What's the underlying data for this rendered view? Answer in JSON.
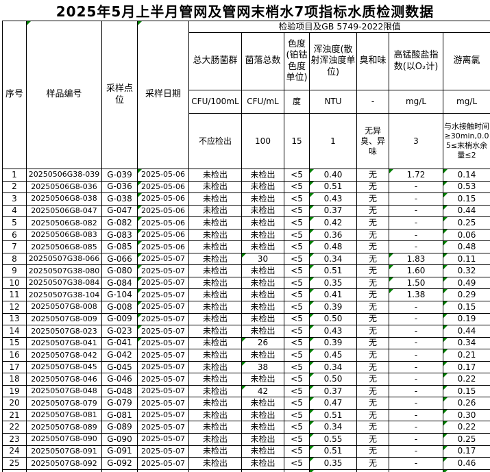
{
  "title": "2025年5月上半月管网及管网末梢水7项指标水质检测数据",
  "colors": {
    "triangle_green": "#008000",
    "border": "#000000",
    "background": "#ffffff"
  },
  "table": {
    "test_header": "检验项目及GB 5749-2022限值",
    "left_headers": [
      {
        "key": "no",
        "label": "序号",
        "mark": false
      },
      {
        "key": "sample",
        "label": "样品编号",
        "mark": true
      },
      {
        "key": "point",
        "label": "采样点位",
        "mark": false
      },
      {
        "key": "date",
        "label": "采样日期",
        "mark": true
      }
    ],
    "indicators": [
      {
        "key": "coliform",
        "name": "总大肠菌群",
        "unit": "CFU/100mL",
        "limit": "不应检出"
      },
      {
        "key": "colony",
        "name": "菌落总数",
        "unit": "CFU/mL",
        "limit": "100"
      },
      {
        "key": "color",
        "name": "色度(铂钴色度单位)",
        "unit": "度",
        "limit": "15"
      },
      {
        "key": "turbidity",
        "name": "浑浊度(散射浑浊度单位)",
        "unit": "NTU",
        "limit": "1"
      },
      {
        "key": "odor",
        "name": "臭和味",
        "unit": "-",
        "limit": "无异臭、异味"
      },
      {
        "key": "cod",
        "name": "高锰酸盐指数(以O₂计)",
        "unit": "mg/L",
        "limit": "3"
      },
      {
        "key": "chlorine",
        "name": "游离氯",
        "unit": "mg/L",
        "limit": "与水接触时间≥30min,0.05≤末梢水余量≤2"
      }
    ],
    "columns_order": [
      "no",
      "sample",
      "point",
      "date",
      "coliform",
      "colony",
      "color",
      "turbidity",
      "odor",
      "cod",
      "chlorine"
    ],
    "rows": [
      {
        "no": "1",
        "sample": "20250506G38-039",
        "point": "G-039",
        "date": "2025-05-06",
        "coliform": "未检出",
        "colony": "未检出",
        "color": "<5",
        "turbidity": "0.40",
        "odor": "无",
        "cod": "1.72",
        "chlorine": "0.14",
        "marks": [
          "date",
          "turbidity",
          "cod",
          "chlorine"
        ]
      },
      {
        "no": "2",
        "sample": "20250506G8-036",
        "point": "G-036",
        "date": "2025-05-06",
        "coliform": "未检出",
        "colony": "未检出",
        "color": "<5",
        "turbidity": "0.51",
        "odor": "无",
        "cod": "-",
        "chlorine": "0.53",
        "marks": [
          "date",
          "turbidity",
          "chlorine"
        ]
      },
      {
        "no": "3",
        "sample": "20250506G8-038",
        "point": "G-038",
        "date": "2025-05-06",
        "coliform": "未检出",
        "colony": "未检出",
        "color": "<5",
        "turbidity": "0.43",
        "odor": "无",
        "cod": "-",
        "chlorine": "0.15",
        "marks": [
          "date",
          "turbidity",
          "chlorine"
        ]
      },
      {
        "no": "4",
        "sample": "20250506G8-047",
        "point": "G-047",
        "date": "2025-05-06",
        "coliform": "未检出",
        "colony": "未检出",
        "color": "<5",
        "turbidity": "0.37",
        "odor": "无",
        "cod": "-",
        "chlorine": "0.44",
        "marks": [
          "date",
          "turbidity",
          "chlorine"
        ]
      },
      {
        "no": "5",
        "sample": "20250506G8-082",
        "point": "G-082",
        "date": "2025-05-06",
        "coliform": "未检出",
        "colony": "未检出",
        "color": "<5",
        "turbidity": "0.42",
        "odor": "无",
        "cod": "-",
        "chlorine": "0.25",
        "marks": [
          "date",
          "turbidity",
          "chlorine"
        ]
      },
      {
        "no": "6",
        "sample": "20250506G8-083",
        "point": "G-083",
        "date": "2025-05-06",
        "coliform": "未检出",
        "colony": "未检出",
        "color": "<5",
        "turbidity": "0.36",
        "odor": "无",
        "cod": "-",
        "chlorine": "0.06",
        "marks": [
          "date",
          "turbidity",
          "chlorine"
        ]
      },
      {
        "no": "7",
        "sample": "20250506G8-085",
        "point": "G-085",
        "date": "2025-05-06",
        "coliform": "未检出",
        "colony": "未检出",
        "color": "<5",
        "turbidity": "0.48",
        "odor": "无",
        "cod": "-",
        "chlorine": "0.48",
        "marks": [
          "date",
          "turbidity",
          "chlorine"
        ]
      },
      {
        "no": "8",
        "sample": "20250507G38-066",
        "point": "G-066",
        "date": "2025-05-07",
        "coliform": "未检出",
        "colony": "30",
        "color": "<5",
        "turbidity": "0.34",
        "odor": "无",
        "cod": "1.83",
        "chlorine": "0.11",
        "marks": [
          "date",
          "colony",
          "turbidity",
          "cod",
          "chlorine"
        ]
      },
      {
        "no": "9",
        "sample": "20250507G38-080",
        "point": "G-080",
        "date": "2025-05-07",
        "coliform": "未检出",
        "colony": "未检出",
        "color": "<5",
        "turbidity": "0.51",
        "odor": "无",
        "cod": "1.60",
        "chlorine": "0.32",
        "marks": [
          "date",
          "turbidity",
          "cod",
          "chlorine"
        ]
      },
      {
        "no": "10",
        "sample": "20250507G38-084",
        "point": "G-084",
        "date": "2025-05-07",
        "coliform": "未检出",
        "colony": "未检出",
        "color": "<5",
        "turbidity": "0.35",
        "odor": "无",
        "cod": "1.50",
        "chlorine": "0.49",
        "marks": [
          "date",
          "turbidity",
          "cod",
          "chlorine"
        ]
      },
      {
        "no": "11",
        "sample": "20250507G38-104",
        "point": "G-104",
        "date": "2025-05-07",
        "coliform": "未检出",
        "colony": "未检出",
        "color": "<5",
        "turbidity": "0.41",
        "odor": "无",
        "cod": "1.38",
        "chlorine": "0.29",
        "marks": [
          "date",
          "turbidity",
          "cod",
          "chlorine"
        ]
      },
      {
        "no": "12",
        "sample": "20250507G8-008",
        "point": "G-008",
        "date": "2025-05-07",
        "coliform": "未检出",
        "colony": "未检出",
        "color": "<5",
        "turbidity": "0.39",
        "odor": "无",
        "cod": "-",
        "chlorine": "0.15",
        "marks": [
          "date",
          "turbidity",
          "chlorine"
        ]
      },
      {
        "no": "13",
        "sample": "20250507G8-009",
        "point": "G-009",
        "date": "2025-05-07",
        "coliform": "未检出",
        "colony": "未检出",
        "color": "<5",
        "turbidity": "0.50",
        "odor": "无",
        "cod": "-",
        "chlorine": "0.19",
        "marks": [
          "date",
          "turbidity",
          "chlorine"
        ]
      },
      {
        "no": "14",
        "sample": "20250507G8-023",
        "point": "G-023",
        "date": "2025-05-07",
        "coliform": "未检出",
        "colony": "未检出",
        "color": "<5",
        "turbidity": "0.43",
        "odor": "无",
        "cod": "-",
        "chlorine": "0.44",
        "marks": [
          "date",
          "turbidity",
          "chlorine"
        ]
      },
      {
        "no": "15",
        "sample": "20250507G8-041",
        "point": "G-041",
        "date": "2025-05-07",
        "coliform": "未检出",
        "colony": "26",
        "color": "<5",
        "turbidity": "0.39",
        "odor": "无",
        "cod": "-",
        "chlorine": "0.34",
        "marks": [
          "date",
          "colony",
          "turbidity",
          "chlorine"
        ]
      },
      {
        "no": "16",
        "sample": "20250507G8-042",
        "point": "G-042",
        "date": "2025-05-07",
        "coliform": "未检出",
        "colony": "未检出",
        "color": "<5",
        "turbidity": "0.45",
        "odor": "无",
        "cod": "-",
        "chlorine": "0.21",
        "marks": [
          "turbidity",
          "chlorine"
        ]
      },
      {
        "no": "17",
        "sample": "20250507G8-045",
        "point": "G-045",
        "date": "2025-05-07",
        "coliform": "未检出",
        "colony": "38",
        "color": "<5",
        "turbidity": "0.34",
        "odor": "无",
        "cod": "-",
        "chlorine": "0.17",
        "marks": [
          "colony",
          "turbidity",
          "chlorine"
        ]
      },
      {
        "no": "18",
        "sample": "20250507G8-046",
        "point": "G-046",
        "date": "2025-05-07",
        "coliform": "未检出",
        "colony": "未检出",
        "color": "<5",
        "turbidity": "0.50",
        "odor": "无",
        "cod": "-",
        "chlorine": "0.22",
        "marks": [
          "turbidity",
          "chlorine"
        ]
      },
      {
        "no": "19",
        "sample": "20250507G8-048",
        "point": "G-048",
        "date": "2025-05-07",
        "coliform": "未检出",
        "colony": "42",
        "color": "<5",
        "turbidity": "0.37",
        "odor": "无",
        "cod": "-",
        "chlorine": "0.15",
        "marks": [
          "colony",
          "turbidity",
          "chlorine"
        ]
      },
      {
        "no": "20",
        "sample": "20250507G8-079",
        "point": "G-079",
        "date": "2025-05-07",
        "coliform": "未检出",
        "colony": "未检出",
        "color": "<5",
        "turbidity": "0.47",
        "odor": "无",
        "cod": "-",
        "chlorine": "0.26",
        "marks": [
          "turbidity",
          "chlorine"
        ]
      },
      {
        "no": "21",
        "sample": "20250507G8-081",
        "point": "G-081",
        "date": "2025-05-07",
        "coliform": "未检出",
        "colony": "未检出",
        "color": "<5",
        "turbidity": "0.51",
        "odor": "无",
        "cod": "-",
        "chlorine": "0.30",
        "marks": [
          "turbidity",
          "chlorine"
        ]
      },
      {
        "no": "22",
        "sample": "20250507G8-089",
        "point": "G-089",
        "date": "2025-05-07",
        "coliform": "未检出",
        "colony": "未检出",
        "color": "<5",
        "turbidity": "0.34",
        "odor": "无",
        "cod": "-",
        "chlorine": "0.22",
        "marks": [
          "turbidity",
          "chlorine"
        ]
      },
      {
        "no": "23",
        "sample": "20250507G8-090",
        "point": "G-090",
        "date": "2025-05-07",
        "coliform": "未检出",
        "colony": "未检出",
        "color": "<5",
        "turbidity": "0.55",
        "odor": "无",
        "cod": "-",
        "chlorine": "0.25",
        "marks": [
          "turbidity",
          "chlorine"
        ]
      },
      {
        "no": "24",
        "sample": "20250507G8-091",
        "point": "G-091",
        "date": "2025-05-07",
        "coliform": "未检出",
        "colony": "未检出",
        "color": "<5",
        "turbidity": "0.51",
        "odor": "无",
        "cod": "-",
        "chlorine": "0.17",
        "marks": [
          "turbidity",
          "chlorine"
        ]
      },
      {
        "no": "25",
        "sample": "20250507G8-092",
        "point": "G-092",
        "date": "2025-05-07",
        "coliform": "未检出",
        "colony": "未检出",
        "color": "<5",
        "turbidity": "0.35",
        "odor": "无",
        "cod": "-",
        "chlorine": "0.46",
        "marks": [
          "turbidity",
          "chlorine"
        ]
      }
    ],
    "partial_row_marks": [
      "turbidity",
      "chlorine"
    ]
  }
}
